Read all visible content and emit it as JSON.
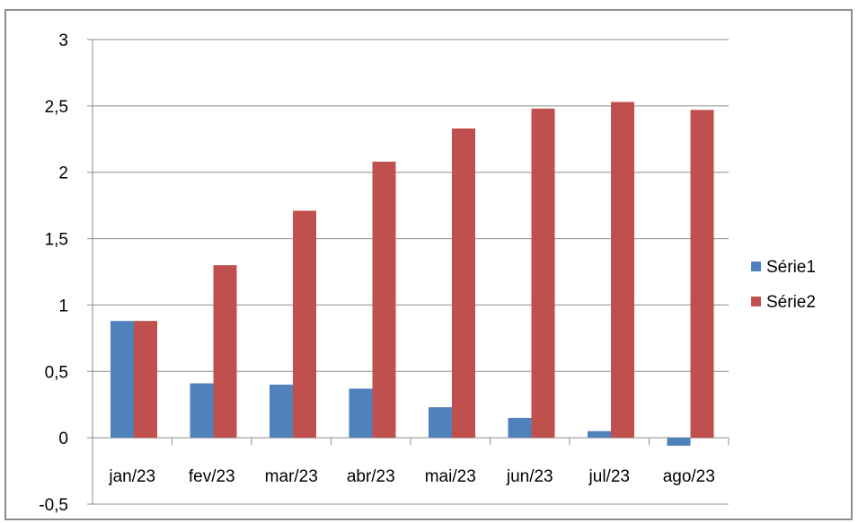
{
  "chart_data": {
    "type": "bar",
    "categories": [
      "jan/23",
      "fev/23",
      "mar/23",
      "abr/23",
      "mai/23",
      "jun/23",
      "jul/23",
      "ago/23"
    ],
    "series": [
      {
        "name": "Série1",
        "color": "#4f81bd",
        "values": [
          0.88,
          0.41,
          0.4,
          0.37,
          0.23,
          0.15,
          0.05,
          -0.06
        ]
      },
      {
        "name": "Série2",
        "color": "#c0504d",
        "values": [
          0.88,
          1.3,
          1.71,
          2.08,
          2.33,
          2.48,
          2.53,
          2.47
        ]
      }
    ],
    "y_ticks": [
      "-0,5",
      "0",
      "0,5",
      "1",
      "1,5",
      "2",
      "2,5",
      "3"
    ],
    "ylim": [
      -0.5,
      3
    ],
    "grid": true,
    "legend_position": "right"
  }
}
